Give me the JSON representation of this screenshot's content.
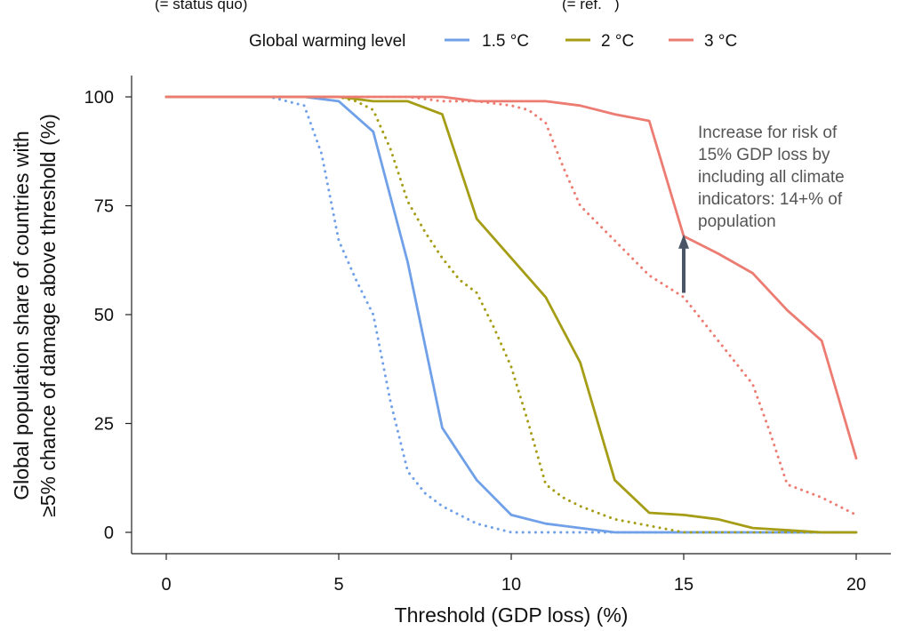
{
  "top_notes": [
    "(= status quo)",
    "(= ref.   )"
  ],
  "legend": {
    "title": "Global warming level",
    "entries": [
      {
        "label": "1.5 °C",
        "color": "#6fa0e8"
      },
      {
        "label": "2 °C",
        "color": "#a59d16"
      },
      {
        "label": "3 °C",
        "color": "#ec7c72"
      }
    ]
  },
  "annotation": {
    "lines": [
      "Increase for risk of",
      "15% GDP loss by",
      "including all climate",
      "indicators: 14+% of",
      "population"
    ],
    "arrow_color": "#4a5566"
  },
  "chart_data": {
    "type": "line",
    "xlabel": "Threshold (GDP loss) (%)",
    "ylabel_lines": [
      "Global population share of countries with",
      "≥5% chance of damage above threshold (%)"
    ],
    "xlim": [
      0,
      20
    ],
    "ylim": [
      0,
      100
    ],
    "xticks": [
      0,
      5,
      10,
      15,
      20
    ],
    "yticks": [
      0,
      25,
      50,
      75,
      100
    ],
    "annotation_arrow": {
      "x": 15,
      "y_from": 55,
      "y_to": 68
    },
    "series": [
      {
        "name": "1.5 °C solid",
        "warming": "1.5 °C",
        "style": "solid",
        "color": "#6fa0e8",
        "x": [
          0,
          1,
          2,
          3,
          4,
          5,
          6,
          7,
          8,
          9,
          10,
          11,
          12,
          13,
          14,
          15,
          16,
          17,
          18,
          19,
          20
        ],
        "y": [
          100,
          100,
          100,
          100,
          100,
          99,
          92,
          62,
          24,
          12,
          4,
          2,
          1,
          0,
          0,
          0,
          0,
          0,
          0,
          0,
          0
        ]
      },
      {
        "name": "1.5 °C dotted",
        "warming": "1.5 °C",
        "style": "dotted",
        "color": "#6fa0e8",
        "x": [
          0,
          1,
          2,
          3,
          4,
          4.5,
          5,
          5.5,
          6,
          6.5,
          7,
          7.5,
          8,
          8.5,
          9,
          9.5,
          10,
          11,
          12,
          13,
          14,
          15,
          16,
          17,
          18,
          19,
          20
        ],
        "y": [
          100,
          100,
          100,
          100,
          98,
          87,
          67,
          58,
          50,
          30,
          14,
          9,
          6,
          4,
          2,
          1,
          0,
          0,
          0,
          0,
          0,
          0,
          0,
          0,
          0,
          0,
          0
        ]
      },
      {
        "name": "2 °C solid",
        "warming": "2 °C",
        "style": "solid",
        "color": "#a59d16",
        "x": [
          0,
          1,
          2,
          3,
          4,
          5,
          6,
          7,
          8,
          9,
          10,
          11,
          12,
          13,
          14,
          15,
          16,
          17,
          18,
          19,
          20
        ],
        "y": [
          100,
          100,
          100,
          100,
          100,
          100,
          99,
          99,
          96,
          72,
          63,
          54,
          39,
          12,
          4.5,
          4,
          3,
          1,
          0.5,
          0,
          0
        ]
      },
      {
        "name": "2 °C dotted",
        "warming": "2 °C",
        "style": "dotted",
        "color": "#a59d16",
        "x": [
          0,
          1,
          2,
          3,
          4,
          5,
          5.5,
          6,
          6.5,
          7,
          7.5,
          8,
          8.5,
          9,
          9.5,
          10,
          10.5,
          11,
          11.5,
          12,
          13,
          14,
          15,
          16,
          17,
          18,
          19,
          20
        ],
        "y": [
          100,
          100,
          100,
          100,
          100,
          100,
          99,
          97,
          88,
          76,
          69,
          63,
          58,
          55,
          47,
          38,
          25,
          11,
          8,
          6,
          3,
          1.5,
          0,
          0,
          0,
          0,
          0,
          0
        ]
      },
      {
        "name": "3 °C solid",
        "warming": "3 °C",
        "style": "solid",
        "color": "#ec7c72",
        "x": [
          0,
          1,
          2,
          3,
          4,
          5,
          6,
          7,
          8,
          9,
          10,
          11,
          12,
          13,
          14,
          15,
          16,
          17,
          18,
          19,
          20
        ],
        "y": [
          100,
          100,
          100,
          100,
          100,
          100,
          100,
          100,
          100,
          99,
          99,
          99,
          98,
          96,
          94.5,
          68,
          64,
          59.5,
          51,
          44,
          17
        ]
      },
      {
        "name": "3 °C dotted",
        "warming": "3 °C",
        "style": "dotted",
        "color": "#ec7c72",
        "x": [
          0,
          1,
          2,
          3,
          4,
          5,
          6,
          7,
          8,
          9,
          10,
          10.5,
          11,
          11.5,
          12,
          13,
          14,
          15,
          16,
          16.5,
          17,
          17.5,
          18,
          19,
          20
        ],
        "y": [
          100,
          100,
          100,
          100,
          100,
          100,
          100,
          100,
          99,
          99,
          98,
          97,
          94,
          84,
          75,
          67,
          59,
          54,
          44,
          39,
          34,
          23,
          11,
          8,
          4
        ]
      }
    ]
  }
}
